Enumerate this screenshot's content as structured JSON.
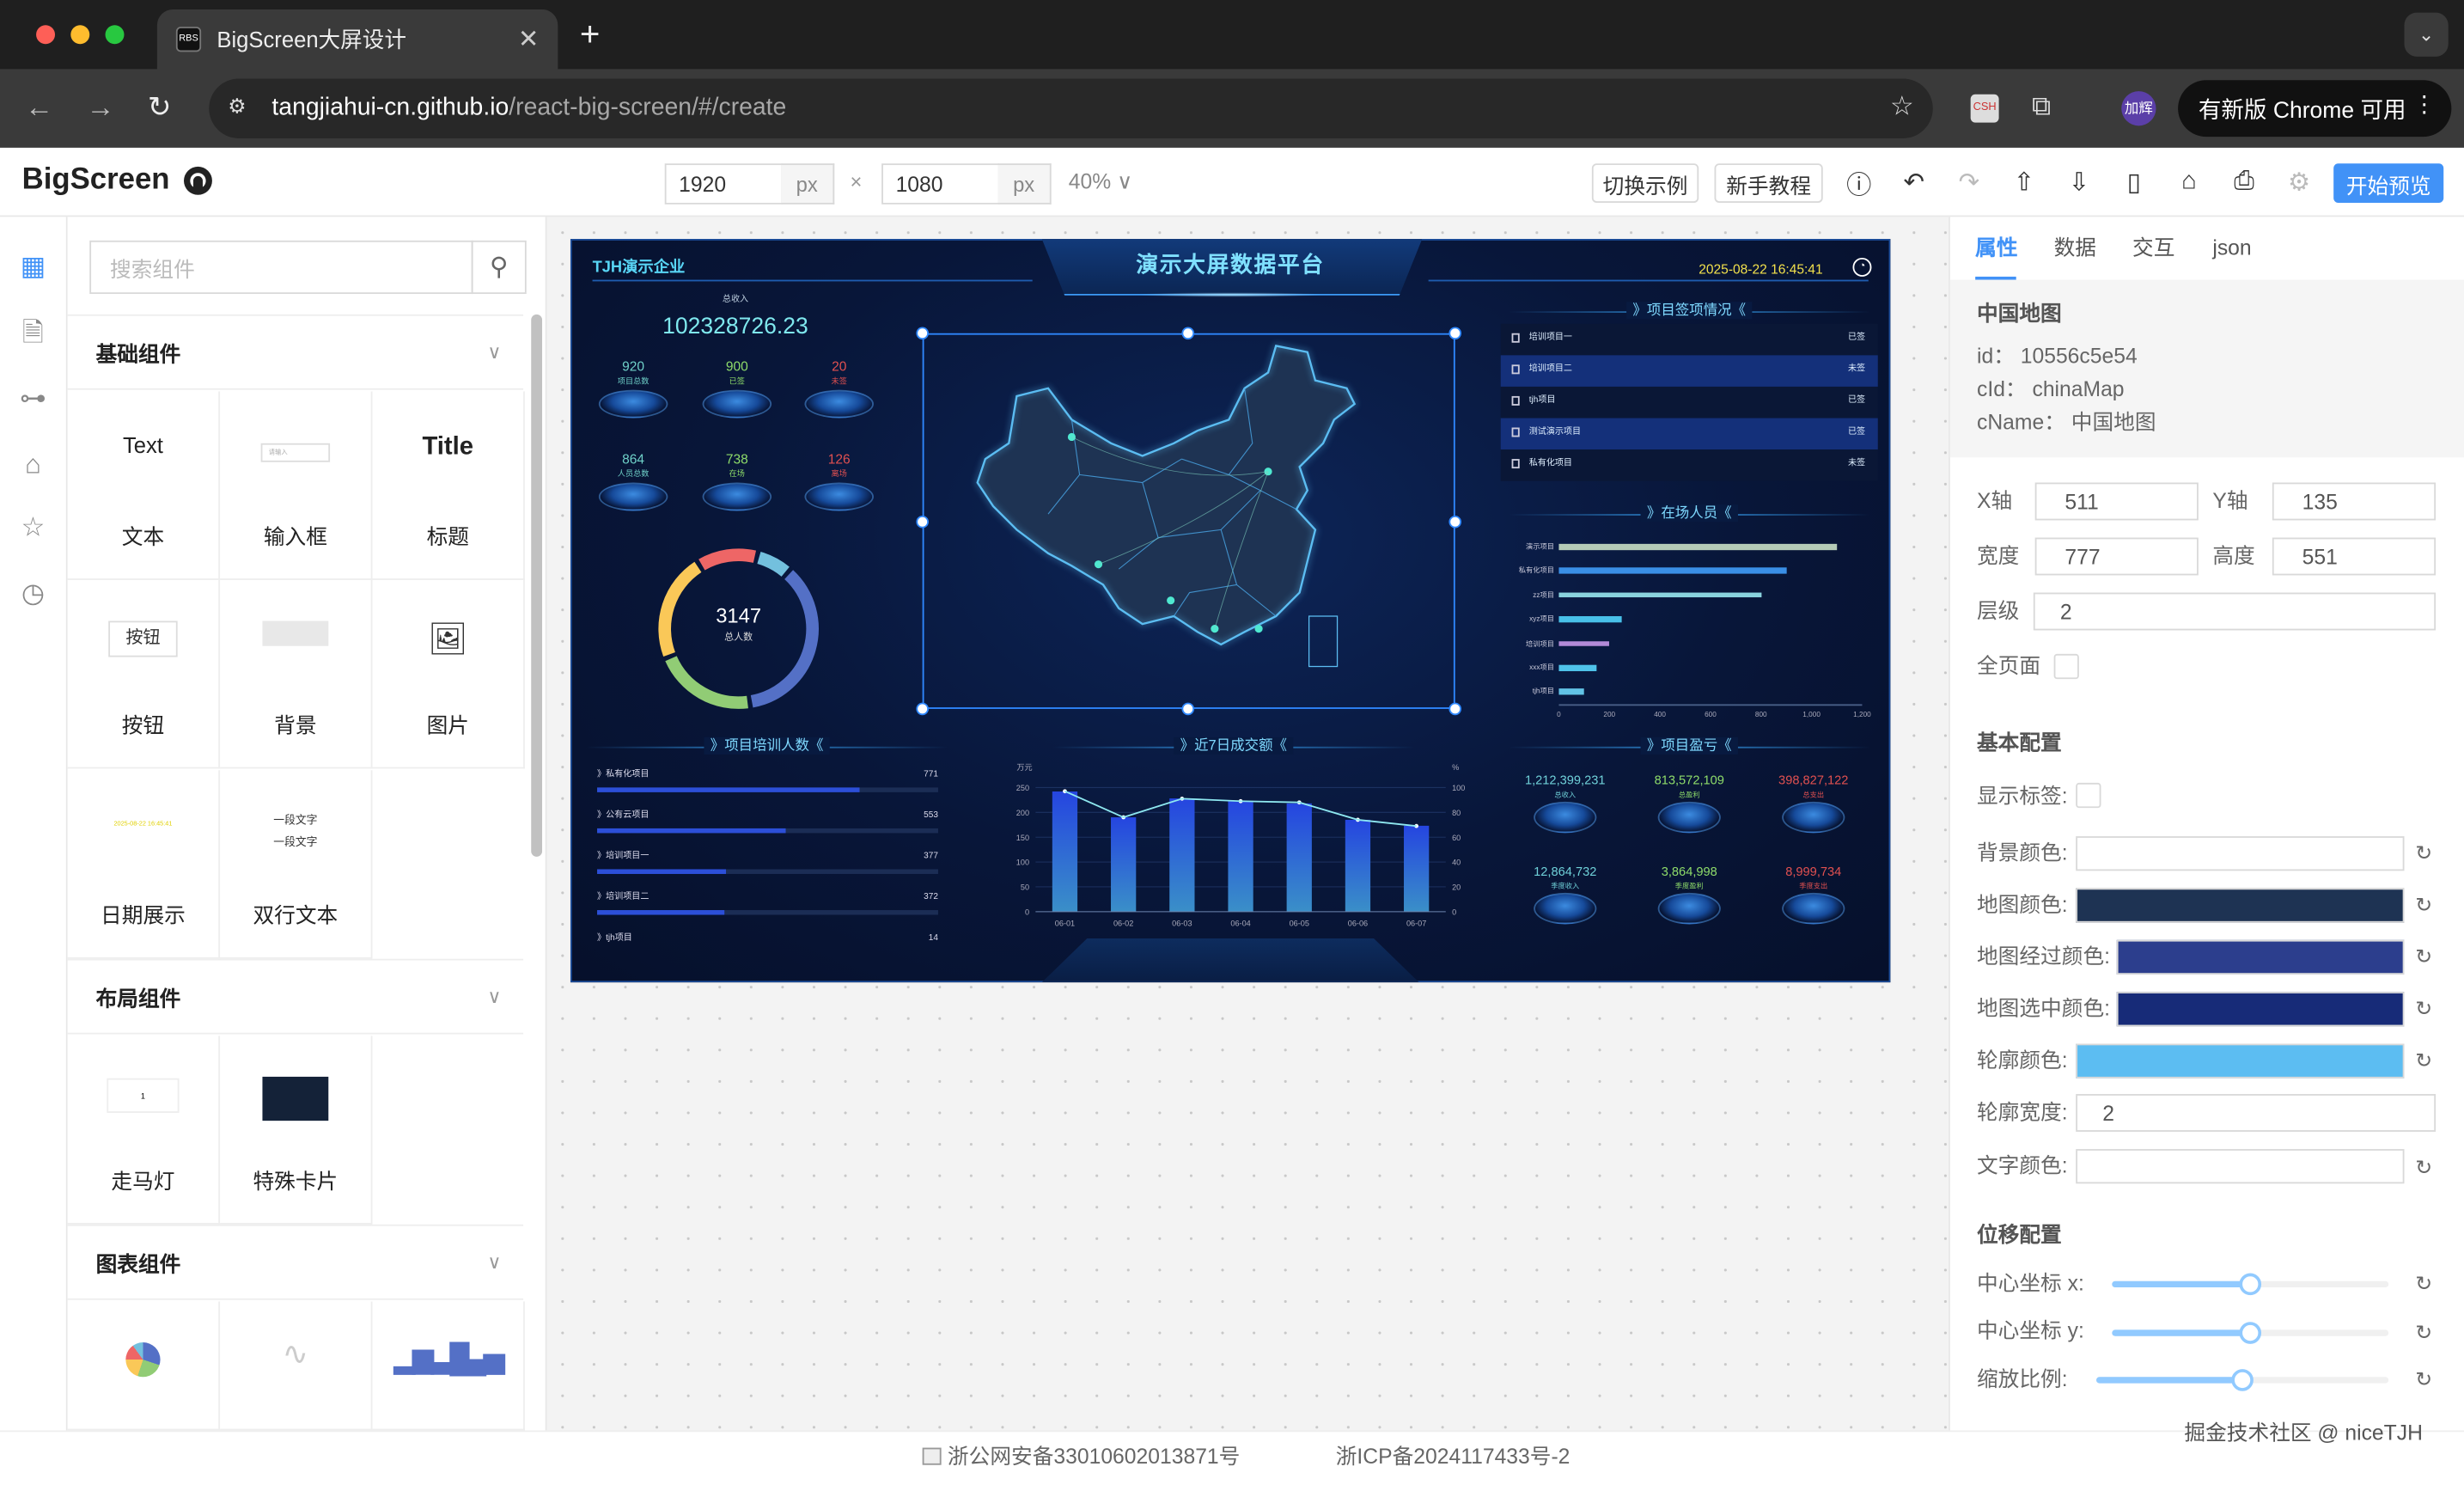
{
  "browser": {
    "tab_title": "BigScreen大屏设计",
    "favicon_text": "RBS",
    "url_host": "tangjiahui-cn.github.io",
    "url_path": "/react-big-screen/#/create",
    "profile": "加辉",
    "update_label": "有新版 Chrome 可用",
    "ext_label": "CSH"
  },
  "header": {
    "logo": "BigScreen",
    "width": "1920",
    "height": "1080",
    "unit": "px",
    "times": "×",
    "zoom": "40%",
    "btn_examples": "切换示例",
    "btn_tutorial": "新手教程",
    "btn_preview": "开始预览"
  },
  "left": {
    "search_placeholder": "搜索组件",
    "sections": [
      {
        "title": "基础组件",
        "items": [
          {
            "thumb": "Text",
            "label": "文本"
          },
          {
            "thumb": "请输入",
            "label": "输入框"
          },
          {
            "thumb": "Title",
            "label": "标题"
          },
          {
            "thumb": "按钮",
            "label": "按钮"
          },
          {
            "thumb": "",
            "label": "背景"
          },
          {
            "thumb": "",
            "label": "图片"
          },
          {
            "thumb": "2025-08-22 16:45:41",
            "label": "日期展示"
          },
          {
            "thumb": "一段文字",
            "thumb2": "一段文字",
            "label": "双行文本"
          }
        ]
      },
      {
        "title": "布局组件",
        "items": [
          {
            "thumb": "1",
            "label": "走马灯"
          },
          {
            "thumb": "",
            "label": "特殊卡片"
          }
        ]
      },
      {
        "title": "图表组件",
        "items": []
      }
    ]
  },
  "dashboard": {
    "company": "TJH演示企业",
    "title": "演示大屏数据平台",
    "datetime": "2025-08-22 16:45:41",
    "income_label": "总收入",
    "income_value": "102328726.23",
    "stats": [
      {
        "value": "920",
        "label": "项目总数",
        "color": "#6fd0c8"
      },
      {
        "value": "900",
        "label": "已签",
        "color": "#8edc6a"
      },
      {
        "value": "20",
        "label": "未签",
        "color": "#e05050"
      },
      {
        "value": "864",
        "label": "人员总数",
        "color": "#6fd0c8"
      },
      {
        "value": "738",
        "label": "在场",
        "color": "#8edc6a"
      },
      {
        "value": "126",
        "label": "离场",
        "color": "#e05050"
      }
    ],
    "donut": {
      "total": "3147",
      "label": "总人数",
      "segments": [
        {
          "share": 7,
          "color": "#73c0de"
        },
        {
          "share": 34,
          "color": "#5470c6"
        },
        {
          "share": 20,
          "color": "#91cc75"
        },
        {
          "share": 21,
          "color": "#fac858"
        },
        {
          "share": 12,
          "color": "#ee6666"
        }
      ]
    },
    "sign_title": "项目签项情况",
    "sign_list": [
      {
        "name": "培训项目一",
        "status": "已签"
      },
      {
        "name": "培训项目二",
        "status": "未签"
      },
      {
        "name": "tjh项目",
        "status": "已签"
      },
      {
        "name": "测试演示项目",
        "status": "已签"
      },
      {
        "name": "私有化项目",
        "status": "未签"
      }
    ],
    "onsite_title": "在场人员",
    "onsite_chart": {
      "type": "bar",
      "orientation": "horizontal",
      "categories": [
        "演示项目",
        "私有化项目",
        "zz项目",
        "xyz项目",
        "培训项目",
        "xxx项目",
        "tjh项目"
      ],
      "values": [
        1100,
        900,
        800,
        250,
        200,
        150,
        100
      ],
      "colors": [
        "#b5cbb7",
        "#3a8fe6",
        "#8ad3de",
        "#48c0e8",
        "#b28ad8",
        "#4fc3ea",
        "#62c3e6"
      ],
      "xlim": [
        0,
        1200
      ],
      "ticks": [
        "0",
        "200",
        "400",
        "600",
        "800",
        "1,000",
        "1,200"
      ]
    },
    "training_title": "项目培训人数",
    "training": {
      "max": 1000,
      "items": [
        {
          "name": "私有化项目",
          "value": 771
        },
        {
          "name": "公有云项目",
          "value": 553
        },
        {
          "name": "培训项目一",
          "value": 377
        },
        {
          "name": "培训项目二",
          "value": 372
        },
        {
          "name": "tjh项目",
          "value": 14
        }
      ]
    },
    "deal_title": "近7日成交额",
    "deal_chart": {
      "type": "bar+line",
      "categories": [
        "06-01",
        "06-02",
        "06-03",
        "06-04",
        "06-05",
        "06-06",
        "06-07"
      ],
      "bars": [
        242,
        190,
        228,
        222,
        218,
        185,
        173
      ],
      "line": [
        97,
        76,
        91,
        89,
        88,
        74,
        69
      ],
      "ylabel_left": "万元",
      "ylabel_right": "%",
      "ylim_left": [
        0,
        250
      ],
      "ylim_right": [
        0,
        100
      ],
      "ticks_left": [
        "0",
        "50",
        "100",
        "150",
        "200",
        "250"
      ],
      "ticks_right": [
        "0",
        "20",
        "40",
        "60",
        "80",
        "100"
      ]
    },
    "profit_title": "项目盈亏",
    "profit": [
      {
        "value": "1,212,399,231",
        "label": "总收入",
        "color": "#6fd0d8"
      },
      {
        "value": "813,572,109",
        "label": "总盈利",
        "color": "#8edc6a"
      },
      {
        "value": "398,827,122",
        "label": "总支出",
        "color": "#e05050"
      },
      {
        "value": "12,864,732",
        "label": "季度收入",
        "color": "#6fd0d8"
      },
      {
        "value": "3,864,998",
        "label": "季度盈利",
        "color": "#8edc6a"
      },
      {
        "value": "8,999,734",
        "label": "季度支出",
        "color": "#e05050"
      }
    ]
  },
  "right": {
    "tabs": [
      "属性",
      "数据",
      "交互",
      "json"
    ],
    "active_tab": "属性",
    "comp_name": "中国地图",
    "id_line": "id：  10556c5e54",
    "cid_line": "cId：  chinaMap",
    "cname_line": "cName：  中国地图",
    "x_label": "X轴",
    "x_value": "511",
    "y_label": "Y轴",
    "y_value": "135",
    "w_label": "宽度",
    "w_value": "777",
    "h_label": "高度",
    "h_value": "551",
    "z_label": "层级",
    "z_value": "2",
    "full_label": "全页面",
    "basic_title": "基本配置",
    "show_label": "显示标签:",
    "bg_label": "背景颜色:",
    "map_color_label": "地图颜色:",
    "map_color": "#1e3353",
    "hover_color_label": "地图经过颜色:",
    "hover_color": "#2c3e8d",
    "select_color_label": "地图选中颜色:",
    "select_color": "#172b78",
    "outline_color_label": "轮廓颜色:",
    "outline_color": "#5cbdf2",
    "outline_width_label": "轮廓宽度:",
    "outline_width": "2",
    "text_color_label": "文字颜色:",
    "move_title": "位移配置",
    "cx_label": "中心坐标 x:",
    "cx_level": 50,
    "cy_label": "中心坐标 y:",
    "cy_level": 50,
    "scale_label": "缩放比例:",
    "scale_level": 50
  },
  "footer": {
    "police": "浙公网安备33010602013871号",
    "icp": "浙ICP备2024117433号-2",
    "watermark": "掘金技术社区 @ niceTJH"
  }
}
